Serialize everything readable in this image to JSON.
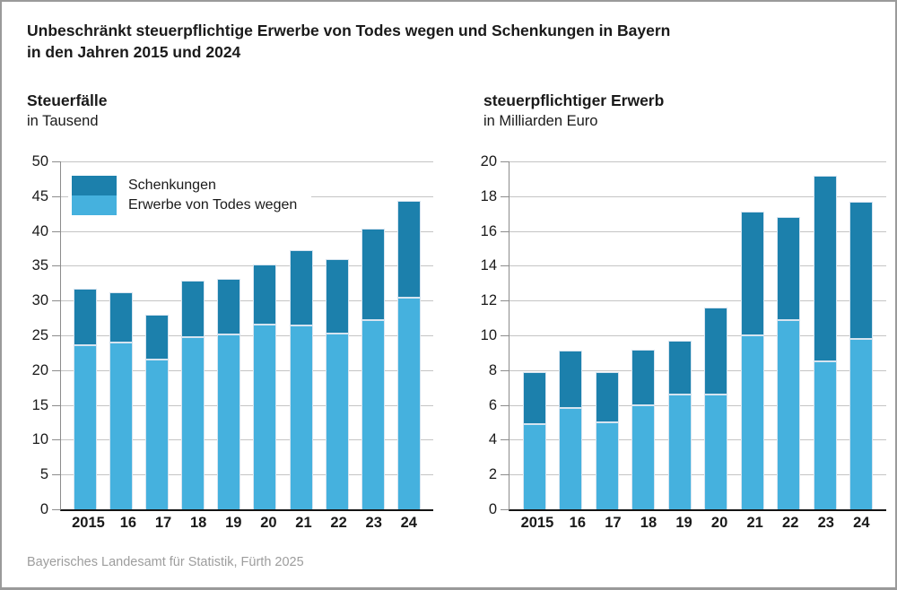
{
  "title": {
    "line1": "Unbeschränkt steuerpflichtige Erwerbe von Todes wegen und Schenkungen in Bayern",
    "line2": "in den Jahren 2015 und 2024"
  },
  "source": "Bayerisches Landesamt für Statistik, Fürth 2025",
  "legend": {
    "items": [
      {
        "label": "Schenkungen",
        "color": "#1c80ac"
      },
      {
        "label": "Erwerbe von Todes wegen",
        "color": "#45b1de"
      }
    ]
  },
  "colors": {
    "schenkungen": "#1c80ac",
    "erwerbe_von_todes_wegen": "#45b1de",
    "gridline": "#c4c4c4",
    "axis_line": "#141414",
    "y_axis_line": "#8c8c8c",
    "bar_outline": "#d6e4f0",
    "source_text": "#9d9d9d",
    "frame": "#9a9a9a",
    "text": "#1a1a1a"
  },
  "chart_data": [
    {
      "type": "bar",
      "stacked": true,
      "title": "Steuerfälle",
      "subtitle": "in Tausend",
      "categories": [
        "2015",
        "16",
        "17",
        "18",
        "19",
        "20",
        "21",
        "22",
        "23",
        "24"
      ],
      "series": [
        {
          "name": "Erwerbe von Todes wegen",
          "color": "#45b1de",
          "values": [
            23.6,
            24.0,
            21.5,
            24.8,
            25.1,
            26.5,
            26.4,
            25.3,
            27.2,
            30.4
          ]
        },
        {
          "name": "Schenkungen",
          "color": "#1c80ac",
          "values": [
            8.1,
            7.2,
            6.5,
            8.0,
            8.0,
            8.7,
            10.8,
            10.7,
            13.1,
            13.9
          ]
        }
      ],
      "totals": [
        31.7,
        31.2,
        28.0,
        32.8,
        33.1,
        35.2,
        37.2,
        36.0,
        40.3,
        44.3
      ],
      "xlabel": "",
      "ylabel": "in Tausend",
      "ylim": [
        0,
        50
      ],
      "ytick_step": 5,
      "grid": true,
      "legend_position": "top-left-inside"
    },
    {
      "type": "bar",
      "stacked": true,
      "title": "steuerpflichtiger Erwerb",
      "subtitle": "in Milliarden Euro",
      "categories": [
        "2015",
        "16",
        "17",
        "18",
        "19",
        "20",
        "21",
        "22",
        "23",
        "24"
      ],
      "series": [
        {
          "name": "Erwerbe von Todes wegen",
          "color": "#45b1de",
          "values": [
            4.9,
            5.8,
            5.0,
            6.0,
            6.6,
            6.6,
            10.0,
            10.9,
            8.5,
            9.8
          ]
        },
        {
          "name": "Schenkungen",
          "color": "#1c80ac",
          "values": [
            3.0,
            3.3,
            2.9,
            3.2,
            3.1,
            5.0,
            7.1,
            5.9,
            10.7,
            7.9
          ]
        }
      ],
      "totals": [
        7.9,
        9.1,
        7.9,
        9.2,
        9.7,
        11.6,
        17.1,
        16.8,
        19.2,
        17.7
      ],
      "xlabel": "",
      "ylabel": "in Milliarden Euro",
      "ylim": [
        0,
        20
      ],
      "ytick_step": 2,
      "grid": true,
      "legend_position": "none"
    }
  ]
}
